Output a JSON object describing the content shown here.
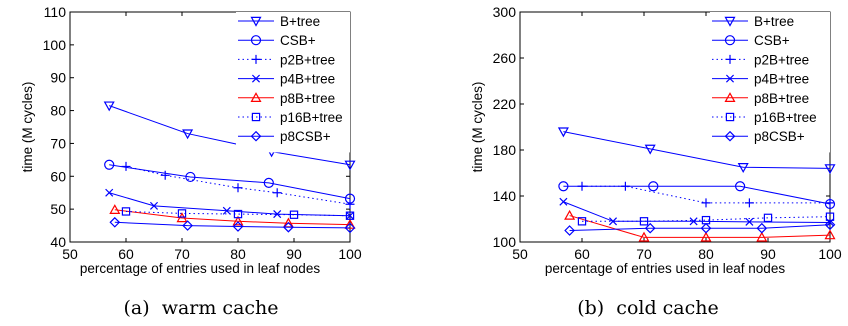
{
  "chart_data": [
    {
      "type": "line",
      "caption": "(a)  warm cache",
      "xlabel": "percentage of entries used in leaf nodes",
      "ylabel": "time (M cycles)",
      "xlim": [
        50,
        100
      ],
      "ylim": [
        40,
        110
      ],
      "xticks": [
        50,
        60,
        70,
        80,
        90,
        100
      ],
      "yticks": [
        40,
        50,
        60,
        70,
        80,
        90,
        100,
        110
      ],
      "grid": false,
      "legend_position": "top-right",
      "series": [
        {
          "name": "B+tree",
          "color": "#0000ff",
          "marker": "triangle-down",
          "line": "solid",
          "x": [
            57,
            71,
            86,
            100
          ],
          "y": [
            81.5,
            73,
            67.5,
            63.5
          ]
        },
        {
          "name": "CSB+",
          "color": "#0000ff",
          "marker": "circle",
          "line": "solid",
          "x": [
            57,
            71.5,
            85.5,
            100
          ],
          "y": [
            63.5,
            59.8,
            58,
            53.2
          ]
        },
        {
          "name": "p2B+tree",
          "color": "#0000ff",
          "marker": "plus",
          "line": "dotted",
          "x": [
            60,
            67,
            80,
            87,
            100
          ],
          "y": [
            63,
            60.3,
            56.5,
            55,
            51.5
          ]
        },
        {
          "name": "p4B+tree",
          "color": "#0000ff",
          "marker": "x",
          "line": "solid",
          "x": [
            57,
            65,
            78,
            87,
            100
          ],
          "y": [
            55,
            51,
            49.5,
            48.5,
            48
          ]
        },
        {
          "name": "p8B+tree",
          "color": "#ff0000",
          "marker": "triangle-up",
          "line": "solid",
          "x": [
            58,
            70,
            80,
            89,
            100
          ],
          "y": [
            49.8,
            47.3,
            46.3,
            45.7,
            45.3
          ]
        },
        {
          "name": "p16B+tree",
          "color": "#0000ff",
          "marker": "square",
          "line": "dotted",
          "x": [
            60,
            70,
            80,
            90,
            100
          ],
          "y": [
            49.3,
            48.7,
            48.5,
            48.3,
            48
          ]
        },
        {
          "name": "p8CSB+",
          "color": "#0000ff",
          "marker": "diamond",
          "line": "solid",
          "x": [
            58,
            71,
            80,
            89,
            100
          ],
          "y": [
            46,
            45,
            44.7,
            44.5,
            44.3
          ]
        }
      ]
    },
    {
      "type": "line",
      "caption": "(b)  cold cache",
      "xlabel": "percentage of entries used in leaf nodes",
      "ylabel": "time (M cycles)",
      "xlim": [
        50,
        100
      ],
      "ylim": [
        100,
        300
      ],
      "xticks": [
        50,
        60,
        70,
        80,
        90,
        100
      ],
      "yticks": [
        100,
        140,
        180,
        220,
        260,
        300
      ],
      "grid": false,
      "legend_position": "top-right",
      "series": [
        {
          "name": "B+tree",
          "color": "#0000ff",
          "marker": "triangle-down",
          "line": "solid",
          "x": [
            57,
            71,
            86,
            100
          ],
          "y": [
            196,
            181,
            165,
            164
          ]
        },
        {
          "name": "CSB+",
          "color": "#0000ff",
          "marker": "circle",
          "line": "solid",
          "x": [
            57,
            71.5,
            85.5,
            100
          ],
          "y": [
            148.5,
            148.5,
            148.5,
            133
          ]
        },
        {
          "name": "p2B+tree",
          "color": "#0000ff",
          "marker": "plus",
          "line": "dotted",
          "x": [
            60,
            67,
            80,
            87,
            100
          ],
          "y": [
            148.5,
            148.5,
            134,
            134,
            134
          ]
        },
        {
          "name": "p4B+tree",
          "color": "#0000ff",
          "marker": "x",
          "line": "solid",
          "x": [
            57,
            65,
            78,
            87,
            100
          ],
          "y": [
            135,
            118,
            118,
            117.5,
            117
          ]
        },
        {
          "name": "p8B+tree",
          "color": "#ff0000",
          "marker": "triangle-up",
          "line": "solid",
          "x": [
            58,
            70,
            80,
            89,
            100
          ],
          "y": [
            123,
            104,
            104,
            104,
            106
          ]
        },
        {
          "name": "p16B+tree",
          "color": "#0000ff",
          "marker": "square",
          "line": "dotted",
          "x": [
            60,
            70,
            80,
            90,
            100
          ],
          "y": [
            118,
            118,
            119,
            121,
            122
          ]
        },
        {
          "name": "p8CSB+",
          "color": "#0000ff",
          "marker": "diamond",
          "line": "solid",
          "x": [
            58,
            71,
            80,
            89,
            100
          ],
          "y": [
            110,
            112,
            112,
            112,
            115
          ]
        }
      ]
    }
  ]
}
